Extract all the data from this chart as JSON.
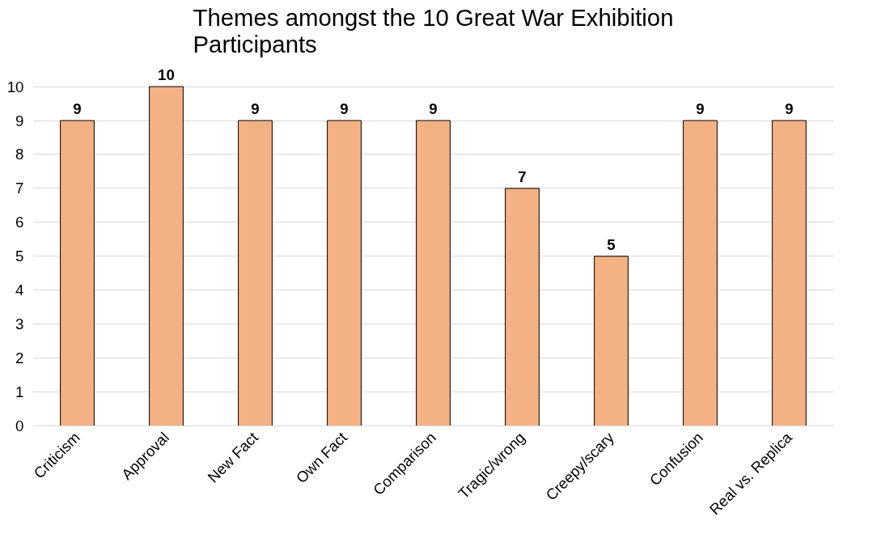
{
  "chart_data": {
    "type": "bar",
    "title": "Themes amongst the 10 Great War Exhibition Participants",
    "categories": [
      "Criticism",
      "Approval",
      "New Fact",
      "Own Fact",
      "Comparison",
      "Tragic/wrong",
      "Creepy/scary",
      "Confusion",
      "Real vs. Replica"
    ],
    "values": [
      9,
      10,
      9,
      9,
      9,
      7,
      5,
      9,
      9
    ],
    "color": "#f4b183",
    "ylim": [
      0,
      10
    ],
    "yticks": [
      0,
      1,
      2,
      3,
      4,
      5,
      6,
      7,
      8,
      9,
      10
    ],
    "grid": "y",
    "data_labels": true
  }
}
